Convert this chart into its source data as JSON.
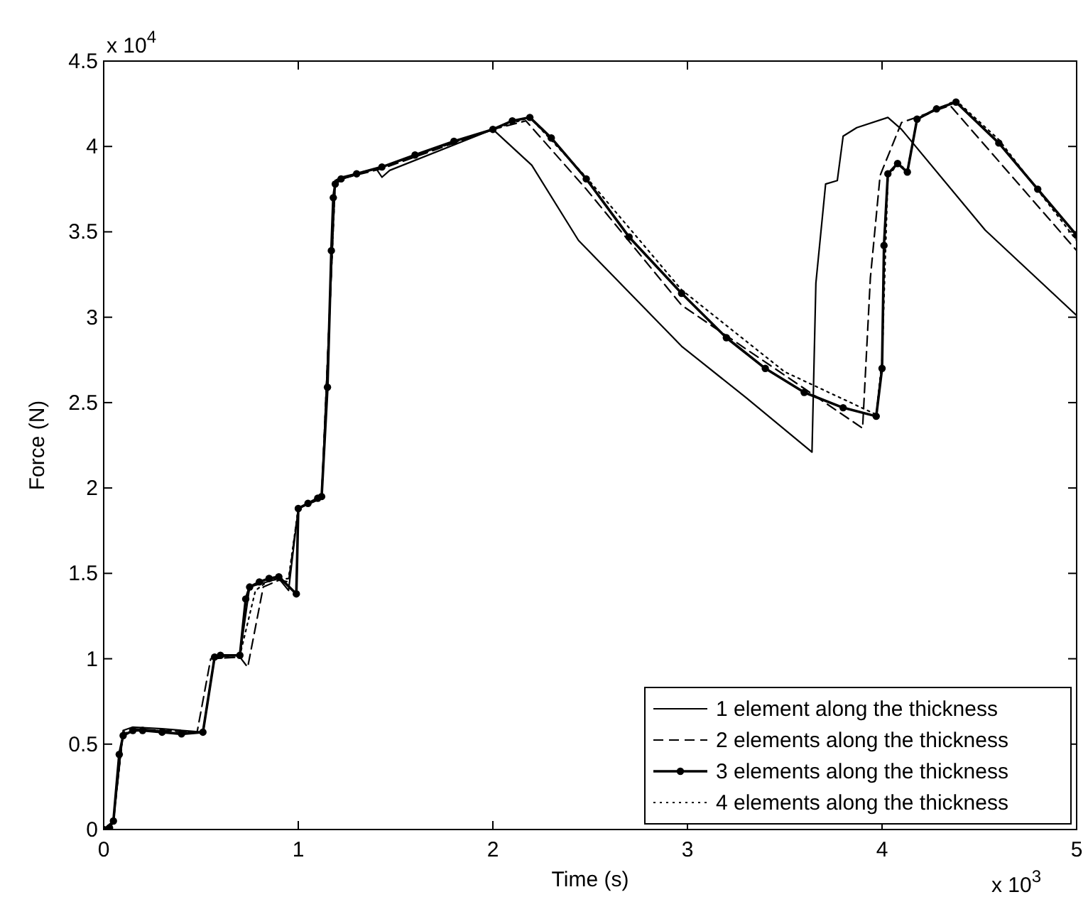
{
  "chart_data": {
    "type": "line",
    "xlabel": "Time (s)",
    "ylabel": "Force (N)",
    "xlim": [
      0,
      5
    ],
    "ylim": [
      0,
      4.5
    ],
    "xticks": [
      0,
      1,
      2,
      3,
      4,
      5
    ],
    "yticks": [
      0,
      0.5,
      1,
      1.5,
      2,
      2.5,
      3,
      3.5,
      4,
      4.5
    ],
    "grid": false,
    "legend": "bottom right",
    "annotations": [
      "x 10$^{4}$",
      "x 10$^{3}$"
    ],
    "series": [
      {
        "name": "1 element along the thickness",
        "color": "#000000",
        "line_style": "solid",
        "marker": "none",
        "x": [
          0,
          0.05,
          0.1,
          0.15,
          0.3,
          0.51,
          0.57,
          0.7,
          0.75,
          0.9,
          0.95,
          1.0,
          1.12,
          1.19,
          1.22,
          1.4,
          1.43,
          1.47,
          2.0,
          2.2,
          2.44,
          2.97,
          3.3,
          3.64,
          3.66,
          3.71,
          3.77,
          3.8,
          3.87,
          4.03,
          4.1,
          4.53,
          5.0
        ],
        "values": [
          0,
          0.05,
          0.58,
          0.6,
          0.59,
          0.57,
          1.01,
          1.02,
          1.42,
          1.47,
          1.4,
          1.88,
          1.94,
          3.8,
          3.82,
          3.87,
          3.82,
          3.86,
          4.1,
          3.89,
          3.45,
          2.83,
          2.53,
          2.21,
          3.2,
          3.78,
          3.8,
          4.06,
          4.11,
          4.17,
          4.1,
          3.51,
          3.01
        ]
      },
      {
        "name": "2 elements along the thickness",
        "color": "#000000",
        "line_style": "dashed",
        "marker": "none",
        "x": [
          0,
          0.05,
          0.1,
          0.15,
          0.3,
          0.48,
          0.55,
          0.7,
          0.74,
          0.82,
          0.9,
          0.95,
          1.0,
          1.12,
          1.19,
          1.22,
          1.43,
          2.0,
          2.17,
          2.48,
          2.97,
          3.5,
          3.9,
          3.94,
          3.99,
          4.1,
          4.35,
          5.0
        ],
        "values": [
          0,
          0.05,
          0.57,
          0.59,
          0.58,
          0.57,
          1.0,
          1.01,
          0.95,
          1.42,
          1.46,
          1.45,
          1.88,
          1.94,
          3.8,
          3.81,
          3.87,
          4.1,
          4.15,
          3.75,
          3.07,
          2.66,
          2.35,
          3.23,
          3.83,
          4.14,
          4.24,
          3.39
        ]
      },
      {
        "name": "3 elements along the thickness",
        "color": "#000000",
        "line_style": "solid",
        "marker": "circle",
        "x": [
          0,
          0.03,
          0.05,
          0.08,
          0.1,
          0.15,
          0.2,
          0.3,
          0.4,
          0.51,
          0.57,
          0.6,
          0.7,
          0.73,
          0.75,
          0.8,
          0.85,
          0.9,
          0.99,
          1.0,
          1.05,
          1.1,
          1.12,
          1.15,
          1.17,
          1.18,
          1.19,
          1.22,
          1.3,
          1.43,
          1.6,
          1.8,
          2.0,
          2.1,
          2.19,
          2.3,
          2.48,
          2.7,
          2.97,
          3.2,
          3.4,
          3.6,
          3.8,
          3.97,
          4.0,
          4.01,
          4.03,
          4.08,
          4.13,
          4.18,
          4.28,
          4.38,
          4.6,
          4.8,
          5.0
        ],
        "values": [
          0,
          0.01,
          0.05,
          0.44,
          0.55,
          0.58,
          0.58,
          0.57,
          0.56,
          0.57,
          1.01,
          1.02,
          1.02,
          1.35,
          1.42,
          1.45,
          1.47,
          1.48,
          1.38,
          1.88,
          1.91,
          1.94,
          1.95,
          2.59,
          3.39,
          3.7,
          3.78,
          3.81,
          3.84,
          3.88,
          3.95,
          4.03,
          4.1,
          4.15,
          4.17,
          4.05,
          3.81,
          3.47,
          3.14,
          2.88,
          2.7,
          2.56,
          2.47,
          2.42,
          2.7,
          3.42,
          3.84,
          3.9,
          3.85,
          4.16,
          4.22,
          4.26,
          4.02,
          3.75,
          3.48
        ]
      },
      {
        "name": "4 elements along the thickness",
        "color": "#000000",
        "line_style": "dotted",
        "marker": "none",
        "x": [
          0,
          0.05,
          0.1,
          0.15,
          0.3,
          0.51,
          0.57,
          0.7,
          0.78,
          0.85,
          0.95,
          1.0,
          1.12,
          1.19,
          1.22,
          1.43,
          2.0,
          2.19,
          2.48,
          2.97,
          3.5,
          3.97,
          4.0,
          4.03,
          4.08,
          4.13,
          4.18,
          4.38,
          4.6,
          5.0
        ],
        "values": [
          0,
          0.05,
          0.56,
          0.58,
          0.58,
          0.57,
          1.01,
          1.02,
          1.4,
          1.46,
          1.47,
          1.88,
          1.94,
          3.8,
          3.81,
          3.88,
          4.1,
          4.17,
          3.82,
          3.16,
          2.68,
          2.43,
          2.75,
          3.82,
          3.9,
          3.86,
          4.16,
          4.27,
          4.04,
          3.45
        ]
      }
    ]
  }
}
